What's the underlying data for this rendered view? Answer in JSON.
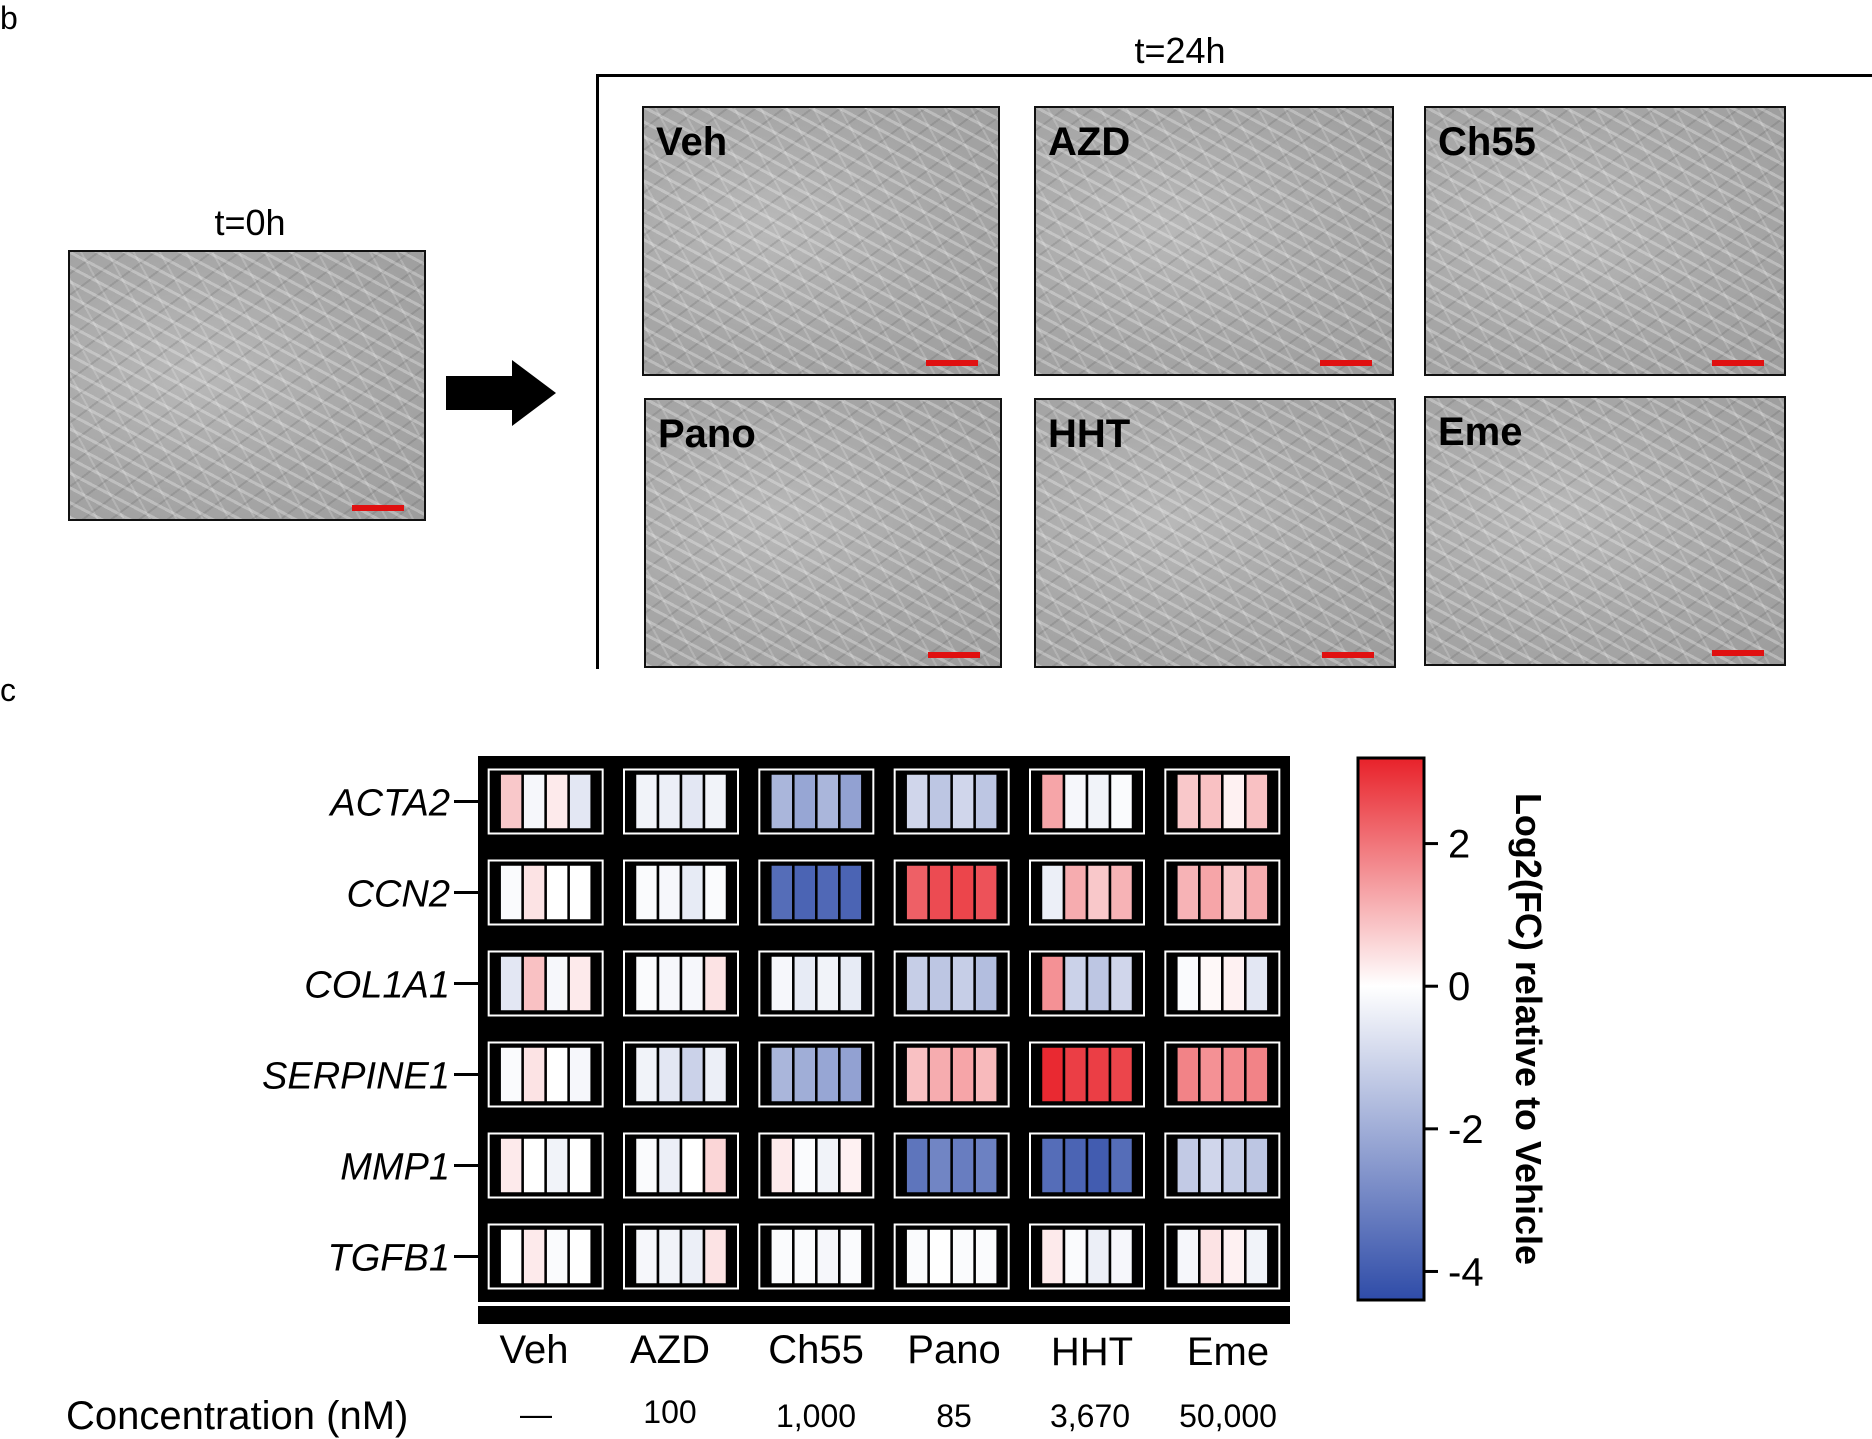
{
  "panel_b": {
    "letter": "b",
    "t0_label": "t=0h",
    "t24_label": "t=24h",
    "images": [
      {
        "label": "Veh"
      },
      {
        "label": "AZD"
      },
      {
        "label": "Ch55"
      },
      {
        "label": "Pano"
      },
      {
        "label": "HHT"
      },
      {
        "label": "Eme"
      }
    ],
    "scale_bar_color": "#e01010"
  },
  "panel_c": {
    "letter": "c",
    "concentration_title": "Concentration (nM)",
    "concentrations": [
      "—",
      "100",
      "1,000",
      "85",
      "3,670",
      "50,000"
    ]
  },
  "chart_data": {
    "type": "heatmap",
    "genes": [
      "ACTA2",
      "CCN2",
      "COL1A1",
      "SERPINE1",
      "MMP1",
      "TGFB1"
    ],
    "treatments": [
      "Veh",
      "AZD",
      "Ch55",
      "Pano",
      "HHT",
      "Eme"
    ],
    "replicates_per_treatment": 4,
    "values": [
      [
        [
          0.8,
          -0.2,
          0.3,
          -0.6
        ],
        [
          -0.3,
          -0.4,
          -0.6,
          -0.3
        ],
        [
          -1.8,
          -2.2,
          -1.8,
          -2.3
        ],
        [
          -1.0,
          -1.4,
          -1.0,
          -1.4
        ],
        [
          1.3,
          -0.2,
          -0.3,
          -0.1
        ],
        [
          0.8,
          0.9,
          0.2,
          0.9
        ]
      ],
      [
        [
          -0.1,
          0.4,
          0.0,
          0.0
        ],
        [
          -0.1,
          -0.2,
          -0.5,
          -0.1
        ],
        [
          -3.6,
          -3.8,
          -3.7,
          -3.8
        ],
        [
          2.3,
          2.6,
          2.7,
          2.5
        ],
        [
          -0.4,
          1.2,
          0.8,
          1.1
        ],
        [
          1.1,
          1.3,
          0.8,
          1.2
        ]
      ],
      [
        [
          -0.6,
          0.9,
          -0.2,
          0.3
        ],
        [
          -0.1,
          -0.2,
          -0.2,
          0.4
        ],
        [
          -0.2,
          -0.5,
          -0.3,
          -0.5
        ],
        [
          -1.2,
          -1.4,
          -1.2,
          -1.6
        ],
        [
          1.6,
          -1.1,
          -1.4,
          -1.0
        ],
        [
          -0.1,
          0.1,
          0.2,
          -0.6
        ]
      ],
      [
        [
          -0.1,
          0.4,
          0.0,
          -0.2
        ],
        [
          -0.3,
          -0.6,
          -1.1,
          -0.4
        ],
        [
          -1.8,
          -2.0,
          -2.2,
          -2.3
        ],
        [
          0.9,
          1.2,
          1.3,
          1.0
        ],
        [
          3.1,
          2.8,
          2.8,
          2.7
        ],
        [
          1.8,
          1.6,
          1.7,
          1.8
        ]
      ],
      [
        [
          0.3,
          0.0,
          -0.3,
          0.0
        ],
        [
          -0.1,
          -0.4,
          0.0,
          0.6
        ],
        [
          0.3,
          -0.1,
          -0.3,
          0.2
        ],
        [
          -3.4,
          -3.0,
          -3.2,
          -3.1
        ],
        [
          -3.6,
          -3.8,
          -4.0,
          -3.6
        ],
        [
          -1.3,
          -1.0,
          -1.2,
          -1.4
        ]
      ],
      [
        [
          0.0,
          0.3,
          -0.1,
          0.0
        ],
        [
          -0.2,
          -0.3,
          -0.4,
          0.4
        ],
        [
          -0.1,
          -0.1,
          -0.2,
          -0.1
        ],
        [
          -0.1,
          0.0,
          -0.1,
          -0.1
        ],
        [
          0.3,
          -0.1,
          -0.4,
          -0.2
        ],
        [
          -0.2,
          0.4,
          0.2,
          -0.3
        ]
      ]
    ],
    "colorbar": {
      "title": "Log2(FC) relative to Vehicle",
      "ticks": [
        "2",
        "0",
        "-2",
        "-4"
      ],
      "tick_values": [
        2,
        0,
        -2,
        -4
      ],
      "range": [
        -4.4,
        3.2
      ],
      "colors": {
        "low": "#2f4ca8",
        "mid": "#ffffff",
        "high": "#e8222a"
      }
    }
  }
}
